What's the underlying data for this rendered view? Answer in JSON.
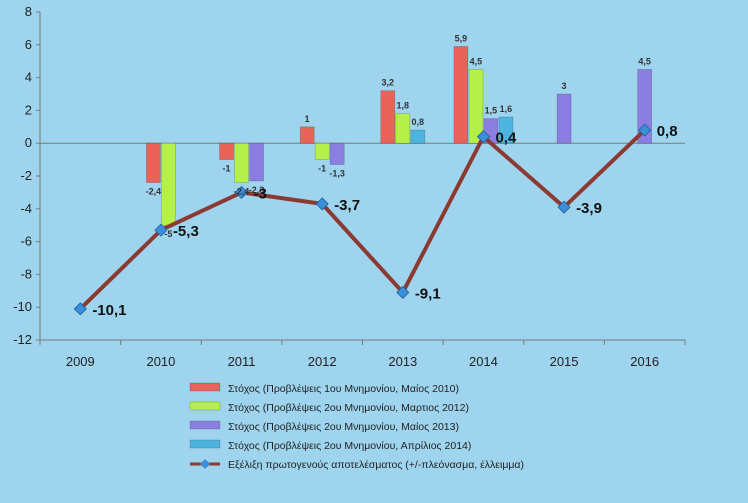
{
  "chart_data": {
    "type": "bar",
    "title": "",
    "xlabel": "",
    "ylabel": "",
    "ylim": [
      -12,
      8
    ],
    "yticks": [
      8,
      6,
      4,
      2,
      0,
      -2,
      -4,
      -6,
      -8,
      -10,
      -12
    ],
    "grid": false,
    "legend_position": "bottom",
    "categories": [
      "2009",
      "2010",
      "2011",
      "2012",
      "2013",
      "2014",
      "2015",
      "2016"
    ],
    "series": [
      {
        "name": "Στόχος (Προβλέψεις 1ου Μνημονίου, Μαίος 2010)",
        "kind": "bar",
        "color": "#e8645a",
        "values": [
          null,
          -2.4,
          -1,
          1,
          3.2,
          5.9,
          null,
          null
        ],
        "labels": [
          null,
          "-2,4",
          "-1",
          "1",
          "3,2",
          "5,9",
          null,
          null
        ]
      },
      {
        "name": "Στόχος (Προβλέψεις 2ου Μνημονίου, Μαρτιος 2012)",
        "kind": "bar",
        "color": "#b5f04a",
        "values": [
          null,
          -5,
          -2.4,
          -1,
          1.8,
          4.5,
          null,
          null
        ],
        "labels": [
          null,
          "-5",
          "-2,4",
          "-1",
          "1,8",
          "4,5",
          null,
          null
        ]
      },
      {
        "name": "Στόχος (Προβλέψεις 2ου Μνημονίου, Μαίος 2013)",
        "kind": "bar",
        "color": "#8c7ee0",
        "values": [
          null,
          null,
          -2.3,
          -1.3,
          null,
          1.5,
          3,
          4.5
        ],
        "labels": [
          null,
          null,
          "-2,3",
          "-1,3",
          null,
          "1,5",
          "3",
          "4,5"
        ]
      },
      {
        "name": "Στόχος (Προβλέψεις 2ου Μνημονίου, Απρίλιος 2014)",
        "kind": "bar",
        "color": "#4cb4de",
        "values": [
          null,
          null,
          null,
          null,
          0.8,
          1.6,
          null,
          null
        ],
        "labels": [
          null,
          null,
          null,
          null,
          "0,8",
          "1,6",
          null,
          null
        ]
      },
      {
        "name": "Εξέλιξη πρωτογενούς αποτελέσματος (+/-πλεόνασμα, έλλειμμα)",
        "kind": "line",
        "color": "#8b3a32",
        "marker_color": "#3a8fd8",
        "values": [
          -10.1,
          -5.3,
          -3,
          -3.7,
          -9.1,
          0.4,
          -3.9,
          0.8
        ],
        "labels": [
          "-10,1",
          "-5,3",
          "-3",
          "-3,7",
          "-9,1",
          "0,4",
          "-3,9",
          "0,8"
        ]
      }
    ]
  }
}
